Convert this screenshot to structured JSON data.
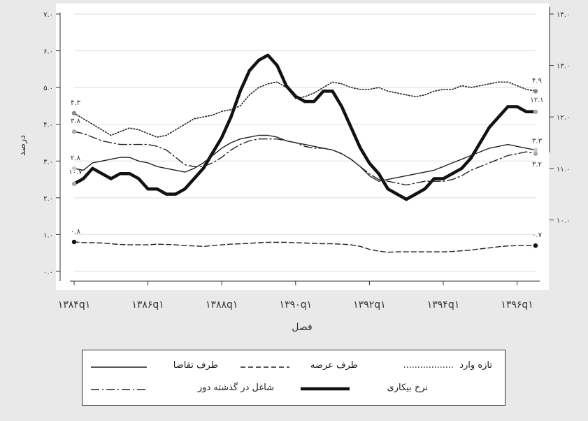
{
  "chart_data": {
    "type": "line",
    "xlabel": "فصل",
    "ylabel": "درصد",
    "x_ticks": [
      "۱۳۸۴q۱",
      "۱۳۸۶q۱",
      "۱۳۸۸q۱",
      "۱۳۹۰q۱",
      "۱۳۹۲q۱",
      "۱۳۹۴q۱",
      "۱۳۹۶q۱"
    ],
    "x_tick_index": [
      0,
      8,
      16,
      24,
      32,
      40,
      48
    ],
    "x_count": 51,
    "ylim_left": [
      0,
      7
    ],
    "ylim_right": [
      9,
      14
    ],
    "y_ticks_left": [
      "۰.۰",
      "۱.۰",
      "۲.۰",
      "۳.۰",
      "۴.۰",
      "۵.۰",
      "۶.۰",
      "۷.۰"
    ],
    "y_ticks_right": [
      "۱۰.۰",
      "۱۱.۰",
      "۱۲.۰",
      "۱۳.۰",
      "۱۴.۰"
    ],
    "grid": true,
    "series": [
      {
        "name": "نرخ بیکاری",
        "axis": "right",
        "style": "thick",
        "values": [
          10.7,
          10.8,
          11.0,
          10.9,
          10.8,
          10.9,
          10.9,
          10.8,
          10.6,
          10.6,
          10.5,
          10.5,
          10.6,
          10.8,
          11.0,
          11.3,
          11.6,
          12.0,
          12.5,
          12.9,
          13.1,
          13.2,
          13.0,
          12.6,
          12.4,
          12.3,
          12.3,
          12.5,
          12.5,
          12.2,
          11.8,
          11.4,
          11.1,
          10.9,
          10.6,
          10.5,
          10.4,
          10.5,
          10.6,
          10.8,
          10.8,
          10.9,
          11.0,
          11.2,
          11.5,
          11.8,
          12.0,
          12.2,
          12.2,
          12.1,
          12.1
        ],
        "start_label": "۱۰.۷",
        "end_label": "۱۲.۱"
      },
      {
        "name": "تازه وارد",
        "axis": "left",
        "style": "dotted",
        "values": [
          4.3,
          4.15,
          4.0,
          3.85,
          3.7,
          3.8,
          3.9,
          3.85,
          3.75,
          3.65,
          3.7,
          3.85,
          4.0,
          4.15,
          4.2,
          4.25,
          4.35,
          4.4,
          4.5,
          4.8,
          5.0,
          5.1,
          5.15,
          5.0,
          4.7,
          4.75,
          4.85,
          5.0,
          5.15,
          5.1,
          5.0,
          4.95,
          4.95,
          5.0,
          4.9,
          4.85,
          4.8,
          4.75,
          4.8,
          4.9,
          4.95,
          4.95,
          5.05,
          5.0,
          5.05,
          5.1,
          5.15,
          5.15,
          5.05,
          4.95,
          4.9
        ],
        "start_label": "۴.۳",
        "end_label": "۴.۹"
      },
      {
        "name": "شاغل در گذشته دور",
        "axis": "left",
        "style": "dashdot",
        "values": [
          3.8,
          3.75,
          3.65,
          3.55,
          3.5,
          3.45,
          3.45,
          3.45,
          3.45,
          3.4,
          3.3,
          3.1,
          2.9,
          2.85,
          2.85,
          2.95,
          3.1,
          3.3,
          3.45,
          3.55,
          3.6,
          3.6,
          3.6,
          3.55,
          3.5,
          3.4,
          3.35,
          3.35,
          3.3,
          3.2,
          3.05,
          2.85,
          2.65,
          2.5,
          2.45,
          2.4,
          2.35,
          2.4,
          2.45,
          2.45,
          2.45,
          2.5,
          2.6,
          2.75,
          2.85,
          2.95,
          3.05,
          3.15,
          3.2,
          3.25,
          3.2
        ],
        "start_label": "۳.۸",
        "end_label": "۳.۲"
      },
      {
        "name": "طرف تقاضا",
        "axis": "left",
        "style": "solid",
        "values": [
          2.8,
          2.75,
          2.95,
          3.0,
          3.05,
          3.1,
          3.1,
          3.0,
          2.95,
          2.85,
          2.8,
          2.75,
          2.7,
          2.8,
          2.95,
          3.15,
          3.35,
          3.5,
          3.6,
          3.65,
          3.7,
          3.7,
          3.65,
          3.55,
          3.5,
          3.45,
          3.4,
          3.35,
          3.3,
          3.2,
          3.05,
          2.85,
          2.6,
          2.45,
          2.5,
          2.55,
          2.6,
          2.65,
          2.7,
          2.75,
          2.85,
          2.95,
          3.05,
          3.15,
          3.25,
          3.35,
          3.4,
          3.45,
          3.4,
          3.35,
          3.3
        ],
        "start_label": "۲.۸",
        "end_label": "۳.۳"
      },
      {
        "name": "طرف عرضه",
        "axis": "left",
        "style": "dashed",
        "values": [
          0.8,
          0.78,
          0.78,
          0.77,
          0.75,
          0.73,
          0.72,
          0.72,
          0.72,
          0.74,
          0.73,
          0.72,
          0.7,
          0.69,
          0.68,
          0.7,
          0.72,
          0.74,
          0.75,
          0.76,
          0.78,
          0.79,
          0.79,
          0.79,
          0.78,
          0.77,
          0.76,
          0.75,
          0.75,
          0.74,
          0.72,
          0.68,
          0.6,
          0.55,
          0.52,
          0.53,
          0.53,
          0.53,
          0.53,
          0.53,
          0.53,
          0.54,
          0.56,
          0.58,
          0.61,
          0.64,
          0.67,
          0.69,
          0.7,
          0.7,
          0.7
        ],
        "start_label": "۰.۸",
        "end_label": "۰.۷"
      }
    ]
  }
}
